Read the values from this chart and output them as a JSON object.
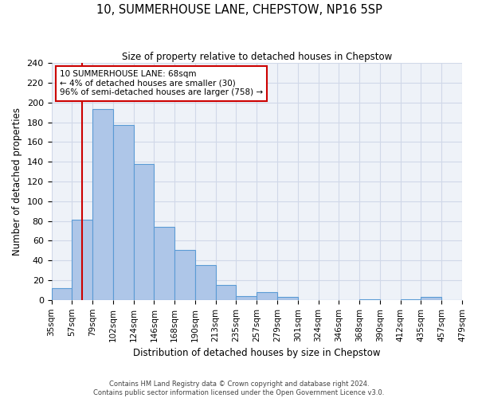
{
  "title": "10, SUMMERHOUSE LANE, CHEPSTOW, NP16 5SP",
  "subtitle": "Size of property relative to detached houses in Chepstow",
  "xlabel": "Distribution of detached houses by size in Chepstow",
  "ylabel": "Number of detached properties",
  "bin_labels": [
    "35sqm",
    "57sqm",
    "79sqm",
    "102sqm",
    "124sqm",
    "146sqm",
    "168sqm",
    "190sqm",
    "213sqm",
    "235sqm",
    "257sqm",
    "279sqm",
    "301sqm",
    "324sqm",
    "346sqm",
    "368sqm",
    "390sqm",
    "412sqm",
    "435sqm",
    "457sqm",
    "479sqm"
  ],
  "bar_heights": [
    12,
    81,
    193,
    177,
    138,
    74,
    51,
    35,
    15,
    4,
    8,
    3,
    0,
    0,
    0,
    1,
    0,
    1,
    3,
    0
  ],
  "bar_color": "#aec6e8",
  "bar_edge_color": "#5b9bd5",
  "grid_color": "#d0d8e8",
  "background_color": "#eef2f8",
  "ylim": [
    0,
    240
  ],
  "yticks": [
    0,
    20,
    40,
    60,
    80,
    100,
    120,
    140,
    160,
    180,
    200,
    220,
    240
  ],
  "bin_starts_vals": [
    35,
    57,
    79,
    102,
    124,
    146,
    168,
    190,
    213,
    235,
    257,
    279,
    301,
    324,
    346,
    368,
    390,
    412,
    435,
    457,
    479
  ],
  "property_size": 68,
  "property_label": "10 SUMMERHOUSE LANE: 68sqm",
  "pct_smaller": 4,
  "n_smaller": 30,
  "pct_larger_semi": 96,
  "n_larger_semi": 758,
  "red_line_color": "#cc0000",
  "annotation_box_edge": "#cc0000",
  "footer_line1": "Contains HM Land Registry data © Crown copyright and database right 2024.",
  "footer_line2": "Contains public sector information licensed under the Open Government Licence v3.0."
}
